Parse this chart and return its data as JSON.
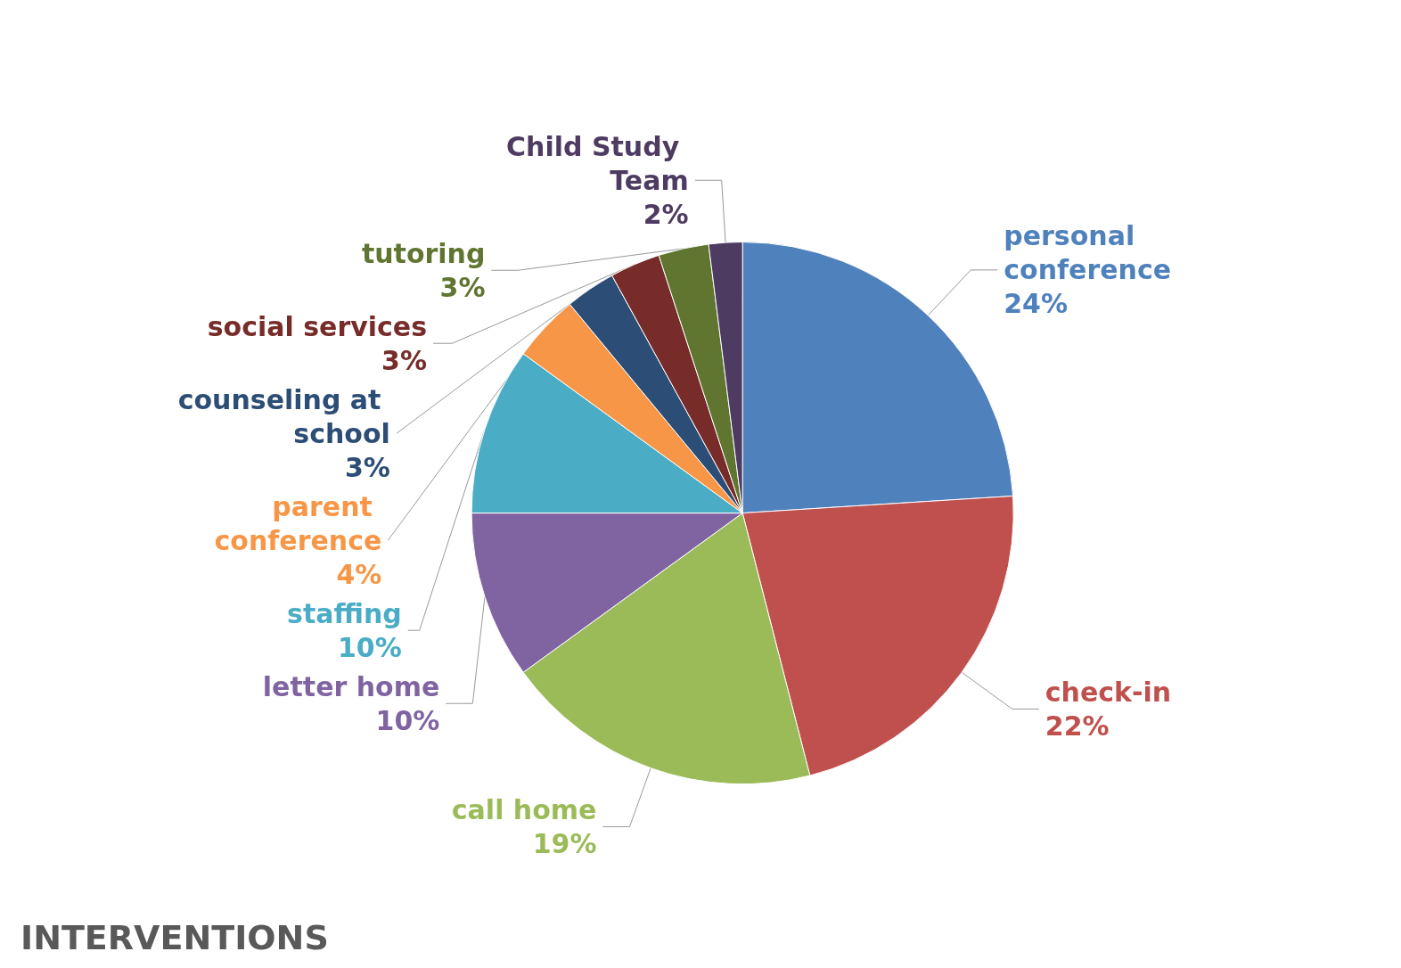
{
  "chart_data": {
    "type": "pie",
    "title": "INTERVENTIONS",
    "categories": [
      "personal conference",
      "check-in",
      "call home",
      "letter home",
      "staffing",
      "parent conference",
      "counseling at school",
      "social services",
      "tutoring",
      "Child Study Team"
    ],
    "values": [
      24,
      22,
      19,
      10,
      10,
      4,
      3,
      3,
      3,
      2
    ],
    "value_labels": [
      "24%",
      "22%",
      "19%",
      "10%",
      "10%",
      "4%",
      "3%",
      "3%",
      "3%",
      "2%"
    ],
    "colors": [
      "#4f81bd",
      "#c0504d",
      "#9bbb59",
      "#8064a2",
      "#4bacc6",
      "#f79646",
      "#2c4d75",
      "#772c2a",
      "#5f7530",
      "#4d3b62"
    ],
    "legend": false
  }
}
